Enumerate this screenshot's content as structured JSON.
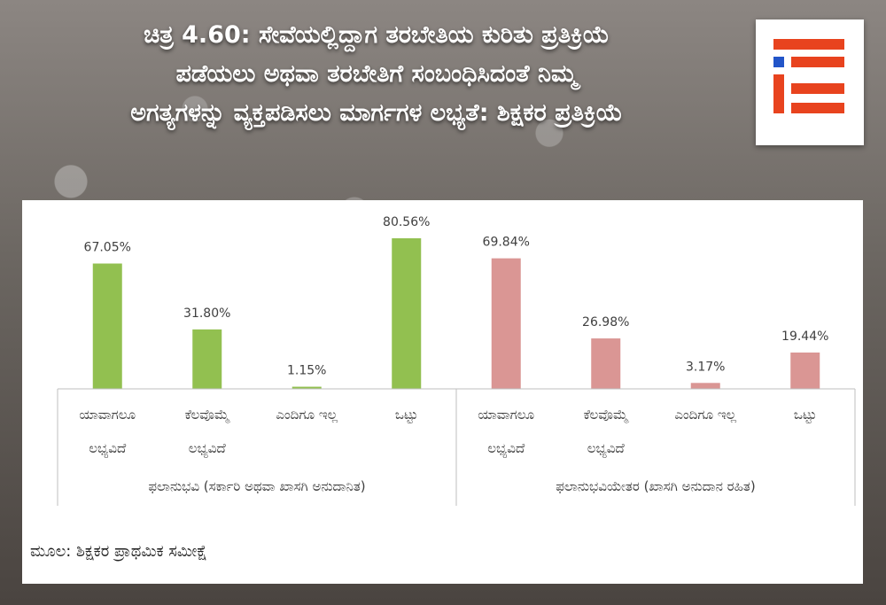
{
  "title": {
    "line1": "ಚಿತ್ರ 4.60: ಸೇವೆಯಲ್ಲಿದ್ದಾಗ ತರಬೇತಿಯ ಕುರಿತು ಪ್ರತಿಕ್ರಿಯೆ",
    "line2": "ಪಡೆಯಲು ಅಥವಾ ತರಬೇತಿಗೆ ಸಂಬಂಧಿಸಿದಂತೆ ನಿಮ್ಮ",
    "line3": "ಅಗತ್ಯಗಳನ್ನು ವ್ಯಕ್ತಪಡಿಸಲು ಮಾರ್ಗಗಳ ಲಭ್ಯತೆ: ಶಿಕ್ಷಕರ ಪ್ರತಿಕ್ರಿಯೆ"
  },
  "logo": {
    "icon": "ie-logo-icon",
    "colors": [
      "#e8431e",
      "#2255c8"
    ]
  },
  "source_text": "ಮೂಲ: ಶಿಕ್ಷಕರ ಪ್ರಾಥಮಿಕ ಸಮೀಕ್ಷೆ",
  "chart_data": {
    "type": "bar",
    "ylim": [
      0,
      100
    ],
    "grid": false,
    "groups": [
      {
        "label": "ಫಲಾನುಭವಿ (ಸರ್ಕಾರಿ ಅಥವಾ ಖಾಸಗಿ ಅನುದಾನಿತ)",
        "color": "#92c050",
        "categories": [
          {
            "line1": "ಯಾವಾಗಲೂ",
            "line2": "ಲಭ್ಯವಿದೆ"
          },
          {
            "line1": "ಕೆಲವೊಮ್ಮೆ",
            "line2": "ಲಭ್ಯವಿದೆ"
          },
          {
            "line1": "ಎಂದಿಗೂ ಇಲ್ಲ",
            "line2": ""
          },
          {
            "line1": "ಒಟ್ಟು",
            "line2": ""
          }
        ],
        "values": [
          67.05,
          31.8,
          1.15,
          80.56
        ],
        "labels": [
          "67.05%",
          "31.80%",
          "1.15%",
          "80.56%"
        ]
      },
      {
        "label": "ಫಲಾನುಭವಿಯೇತರ (ಖಾಸಗಿ ಅನುದಾನ ರಹಿತ)",
        "color": "#da9694",
        "categories": [
          {
            "line1": "ಯಾವಾಗಲೂ",
            "line2": "ಲಭ್ಯವಿದೆ"
          },
          {
            "line1": "ಕೆಲವೊಮ್ಮೆ",
            "line2": "ಲಭ್ಯವಿದೆ"
          },
          {
            "line1": "ಎಂದಿಗೂ ಇಲ್ಲ",
            "line2": ""
          },
          {
            "line1": "ಒಟ್ಟು",
            "line2": ""
          }
        ],
        "values": [
          69.84,
          26.98,
          3.17,
          19.44
        ],
        "labels": [
          "69.84%",
          "26.98%",
          "3.17%",
          "19.44%"
        ]
      }
    ]
  }
}
